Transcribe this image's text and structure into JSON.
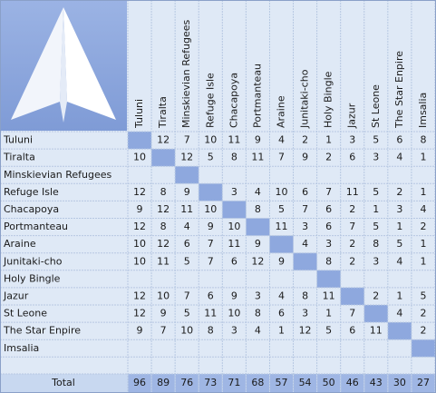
{
  "table": {
    "columns": [
      "Tuluni",
      "Tiralta",
      "Minskievian Refugees",
      "Refuge Isle",
      "Chacapoya",
      "Portmanteau",
      "Araine",
      "Junitaki-cho",
      "Holy Bingle",
      "Jazur",
      "St Leone",
      "The Star Enpire",
      "Imsalia"
    ],
    "rows": [
      {
        "name": "Tuluni",
        "cells": [
          null,
          12,
          7,
          10,
          11,
          9,
          4,
          2,
          1,
          3,
          5,
          6,
          8
        ]
      },
      {
        "name": "Tiralta",
        "cells": [
          10,
          null,
          12,
          5,
          8,
          11,
          7,
          9,
          2,
          6,
          3,
          4,
          1
        ]
      },
      {
        "name": "Minskievian Refugees",
        "cells": [
          null,
          null,
          null,
          null,
          null,
          null,
          null,
          null,
          null,
          null,
          null,
          null,
          null
        ]
      },
      {
        "name": "Refuge Isle",
        "cells": [
          12,
          8,
          9,
          null,
          3,
          4,
          10,
          6,
          7,
          11,
          5,
          2,
          1
        ]
      },
      {
        "name": "Chacapoya",
        "cells": [
          9,
          12,
          11,
          10,
          null,
          8,
          5,
          7,
          6,
          2,
          1,
          3,
          4
        ]
      },
      {
        "name": "Portmanteau",
        "cells": [
          12,
          8,
          4,
          9,
          10,
          null,
          11,
          3,
          6,
          7,
          5,
          1,
          2
        ]
      },
      {
        "name": "Araine",
        "cells": [
          10,
          12,
          6,
          7,
          11,
          9,
          null,
          4,
          3,
          2,
          8,
          5,
          1
        ]
      },
      {
        "name": "Junitaki-cho",
        "cells": [
          10,
          11,
          5,
          7,
          6,
          12,
          9,
          null,
          8,
          2,
          3,
          4,
          1
        ]
      },
      {
        "name": "Holy Bingle",
        "cells": [
          null,
          null,
          null,
          null,
          null,
          null,
          null,
          null,
          null,
          null,
          null,
          null,
          null
        ]
      },
      {
        "name": "Jazur",
        "cells": [
          12,
          10,
          7,
          6,
          9,
          3,
          4,
          8,
          11,
          null,
          2,
          1,
          5
        ]
      },
      {
        "name": "St Leone",
        "cells": [
          12,
          9,
          5,
          11,
          10,
          8,
          6,
          3,
          1,
          7,
          null,
          4,
          2
        ]
      },
      {
        "name": "The Star Enpire",
        "cells": [
          9,
          7,
          10,
          8,
          3,
          4,
          1,
          12,
          5,
          6,
          11,
          null,
          2
        ]
      },
      {
        "name": "Imsalia",
        "cells": [
          null,
          null,
          null,
          null,
          null,
          null,
          null,
          null,
          null,
          null,
          null,
          null,
          null
        ]
      }
    ],
    "total": {
      "label": "Total",
      "values": [
        96,
        89,
        76,
        73,
        71,
        68,
        57,
        54,
        50,
        46,
        43,
        30,
        27
      ]
    }
  }
}
